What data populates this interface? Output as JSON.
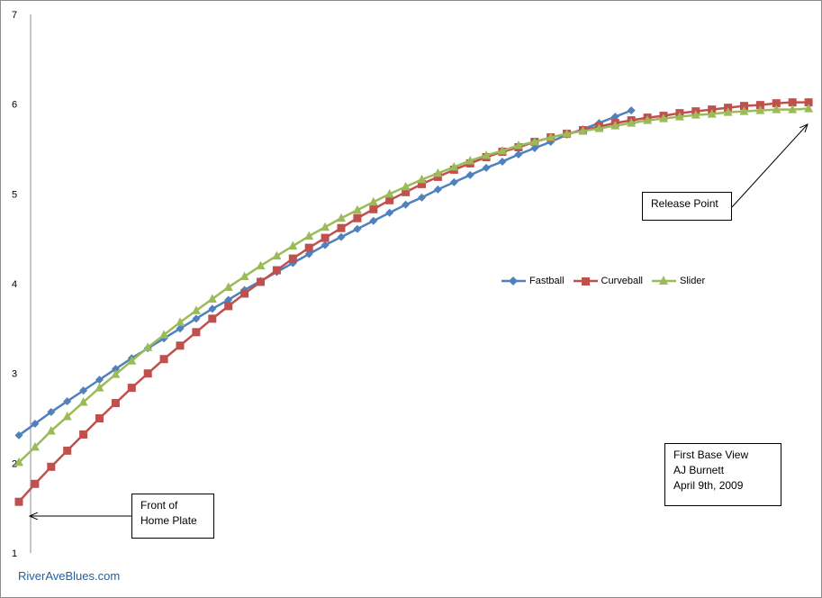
{
  "chart_data": {
    "type": "line",
    "title": "",
    "xlabel": "",
    "ylabel": "",
    "ylim": [
      1,
      7
    ],
    "y_ticks": [
      "1",
      "2",
      "3",
      "4",
      "5",
      "6",
      "7"
    ],
    "legend_position": "right-middle",
    "series": [
      {
        "name": "Fastball",
        "color": "#4f81bd",
        "marker": "diamond",
        "values": [
          2.31,
          2.44,
          2.57,
          2.69,
          2.81,
          2.93,
          3.05,
          3.17,
          3.28,
          3.39,
          3.5,
          3.61,
          3.72,
          3.82,
          3.93,
          4.03,
          4.13,
          4.23,
          4.33,
          4.43,
          4.52,
          4.61,
          4.7,
          4.79,
          4.88,
          4.96,
          5.05,
          5.13,
          5.21,
          5.29,
          5.36,
          5.44,
          5.51,
          5.58,
          5.66,
          5.72,
          5.79,
          5.86,
          5.93
        ]
      },
      {
        "name": "Curveball",
        "color": "#c0504d",
        "marker": "square",
        "values": [
          1.57,
          1.77,
          1.96,
          2.14,
          2.32,
          2.5,
          2.67,
          2.84,
          3.0,
          3.16,
          3.31,
          3.46,
          3.61,
          3.75,
          3.89,
          4.02,
          4.15,
          4.28,
          4.4,
          4.51,
          4.62,
          4.73,
          4.83,
          4.93,
          5.02,
          5.11,
          5.19,
          5.27,
          5.34,
          5.41,
          5.47,
          5.52,
          5.58,
          5.63,
          5.67,
          5.71,
          5.75,
          5.79,
          5.82,
          5.85,
          5.87,
          5.9,
          5.92,
          5.94,
          5.96,
          5.98,
          5.99,
          6.01,
          6.02,
          6.02
        ]
      },
      {
        "name": "Slider",
        "color": "#9bbb59",
        "marker": "triangle",
        "values": [
          2.01,
          2.18,
          2.36,
          2.52,
          2.68,
          2.84,
          2.99,
          3.14,
          3.29,
          3.43,
          3.57,
          3.7,
          3.83,
          3.96,
          4.08,
          4.2,
          4.31,
          4.42,
          4.53,
          4.63,
          4.73,
          4.82,
          4.91,
          5.0,
          5.08,
          5.16,
          5.23,
          5.3,
          5.37,
          5.43,
          5.48,
          5.54,
          5.58,
          5.63,
          5.67,
          5.7,
          5.73,
          5.76,
          5.79,
          5.82,
          5.84,
          5.86,
          5.88,
          5.89,
          5.91,
          5.92,
          5.93,
          5.94,
          5.94,
          5.95
        ]
      }
    ]
  },
  "annotations": {
    "release_point": "Release Point",
    "front_plate_line1": "Front of",
    "front_plate_line2": "Home Plate",
    "view": "First Base View",
    "pitcher": "AJ Burnett",
    "date": "April 9th, 2009"
  },
  "brand": "RiverAveBlues.com"
}
